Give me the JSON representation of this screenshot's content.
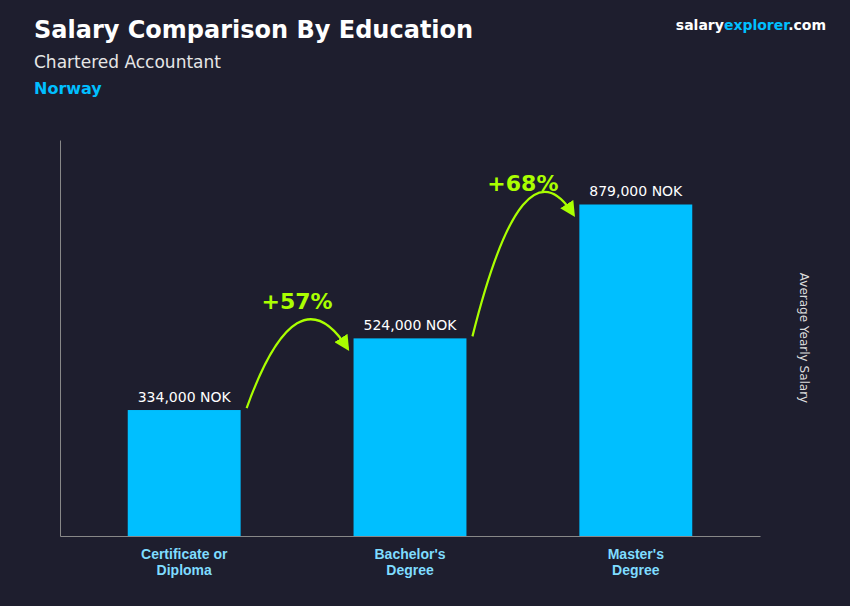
{
  "chart_data": {
    "type": "bar",
    "title": "Salary Comparison By Education",
    "subtitle": "Chartered Accountant",
    "brand": [
      {
        "text": "salary",
        "color": "#FFFFFF"
      },
      {
        "text": "explorer",
        "color": "#00BFFF"
      },
      {
        "text": ".com",
        "color": "#FFFFFF"
      }
    ],
    "annotations": [
      {
        "text": "Norway",
        "color": "#00BFFF"
      },
      {
        "text": "+57%",
        "color": "#AAFF00",
        "between": [
          0,
          1
        ]
      },
      {
        "text": "+68%",
        "color": "#AAFF00",
        "between": [
          1,
          2
        ]
      }
    ],
    "y_label": "Average Yearly Salary",
    "categories": [
      "Certificate or\nDiploma",
      "Bachelor's\nDegree",
      "Master's\nDegree"
    ],
    "values": [
      334000,
      524000,
      879000
    ],
    "value_labels": [
      "334,000 NOK",
      "524,000 NOK",
      "879,000 NOK"
    ],
    "data_labels": true,
    "color": "#00BFFF",
    "ylim": [
      0,
      1050000
    ],
    "tick_labels": "x",
    "grid": false
  }
}
